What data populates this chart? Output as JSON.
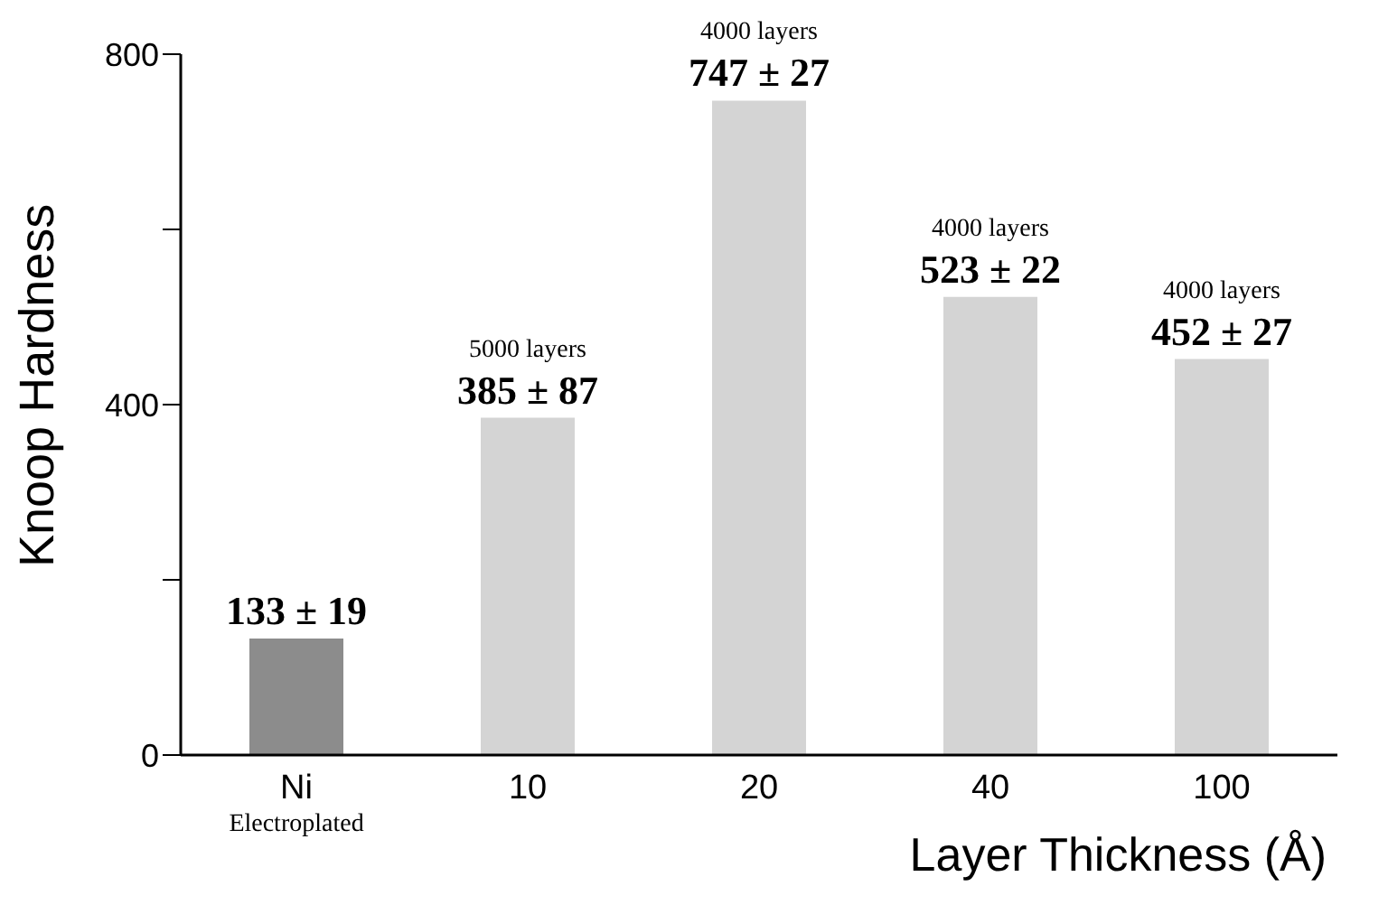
{
  "chart_data": {
    "type": "bar",
    "xlabel": "Layer Thickness (Å)",
    "ylabel": "Knoop Hardness",
    "categories": [
      "Ni\nElectroplated",
      "10",
      "20",
      "40",
      "100"
    ],
    "values": [
      133,
      385,
      747,
      523,
      452
    ],
    "colors": [
      "#8c8c8c",
      "#d4d4d4",
      "#d4d4d4",
      "#d4d4d4",
      "#d4d4d4"
    ],
    "value_labels": [
      "133 ± 19",
      "385 ± 87",
      "747 ± 27",
      "523 ± 22",
      "452 ± 27"
    ],
    "annotations": [
      {
        "text": "5000 layers",
        "x": "10",
        "y": 385
      },
      {
        "text": "4000 layers",
        "x": "20",
        "y": 747
      },
      {
        "text": "4000 layers",
        "x": "40",
        "y": 523
      },
      {
        "text": "4000 layers",
        "x": "100",
        "y": 452
      }
    ],
    "ylim": [
      0,
      800
    ],
    "yticks": [
      0,
      {
        "value": 200,
        "label": null
      },
      400,
      {
        "value": 600,
        "label": null
      },
      800
    ],
    "grid": false,
    "legend": false
  }
}
